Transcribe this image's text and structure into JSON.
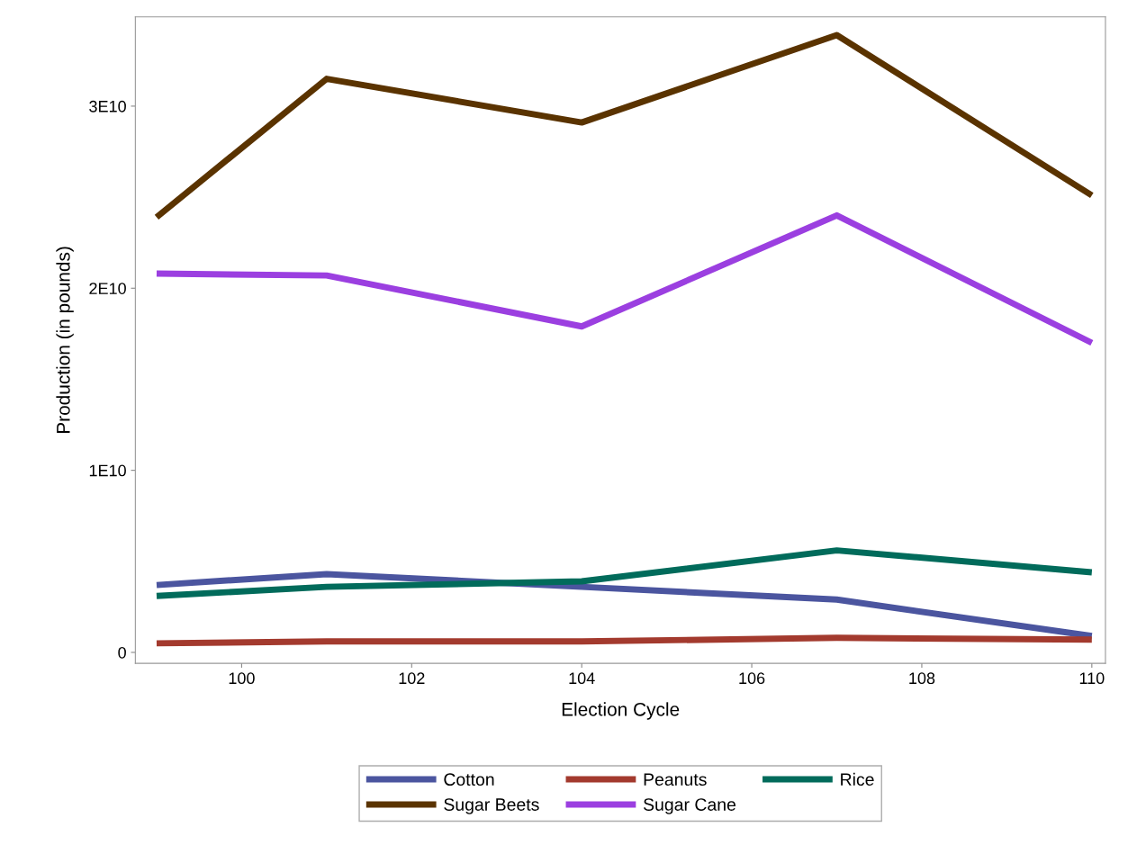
{
  "chart_data": {
    "type": "line",
    "xlabel": "Election Cycle",
    "ylabel": "Production (in pounds)",
    "x": [
      99,
      101,
      104,
      107,
      110
    ],
    "xlim": [
      98.75,
      110.16
    ],
    "xticks": [
      100,
      102,
      104,
      106,
      108,
      110
    ],
    "ylim": [
      -600000000,
      34900000000
    ],
    "yticks": [
      0,
      {
        "value": 10000000000,
        "label": "1E10"
      },
      {
        "value": 20000000000,
        "label": "2E10"
      },
      {
        "value": 30000000000,
        "label": "3E10"
      }
    ],
    "grid": false,
    "legend": "bottom",
    "marker": "none",
    "line_style": "solid",
    "series": [
      {
        "name": "Cotton",
        "color": "#4b559f",
        "values": [
          3700000000,
          4300000000,
          3600000000,
          2900000000,
          900000000
        ]
      },
      {
        "name": "Peanuts",
        "color": "#a33a2e",
        "values": [
          500000000,
          600000000,
          600000000,
          800000000,
          700000000
        ]
      },
      {
        "name": "Rice",
        "color": "#016b5b",
        "values": [
          3100000000,
          3600000000,
          3900000000,
          5600000000,
          4400000000
        ]
      },
      {
        "name": "Sugar Beets",
        "color": "#5a3300",
        "values": [
          23900000000,
          31500000000,
          29100000000,
          33900000000,
          25100000000
        ]
      },
      {
        "name": "Sugar Cane",
        "color": "#9b3fe0",
        "values": [
          20800000000,
          20700000000,
          17900000000,
          24000000000,
          17000000000
        ]
      }
    ]
  }
}
